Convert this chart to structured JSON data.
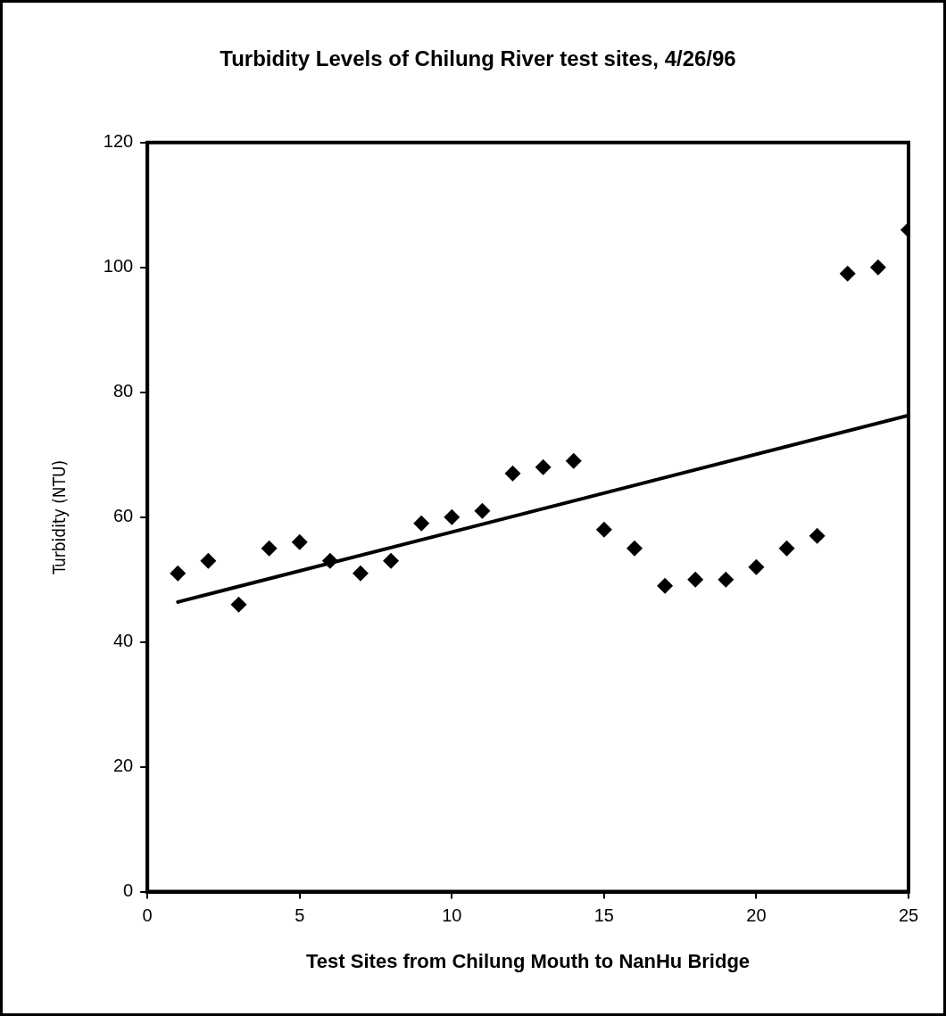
{
  "chart_data": {
    "type": "scatter",
    "title": "Turbidity Levels of Chilung River test sites, 4/26/96",
    "xlabel": "Test Sites from Chilung Mouth to NanHu Bridge",
    "ylabel": "Turbidity (NTU)",
    "xlim": [
      0,
      25
    ],
    "xticks": [
      0,
      5,
      10,
      15,
      20,
      25
    ],
    "ylim": [
      0,
      120
    ],
    "yticks": [
      0,
      20,
      40,
      60,
      80,
      100,
      120
    ],
    "grid": false,
    "legend": false,
    "series": [
      {
        "type": "scatter",
        "marker": "diamond",
        "color": "#000000",
        "x": [
          1,
          2,
          3,
          4,
          5,
          6,
          7,
          8,
          9,
          10,
          11,
          12,
          13,
          14,
          15,
          16,
          17,
          18,
          19,
          20,
          21,
          22,
          23,
          24,
          25
        ],
        "values": [
          51,
          53,
          46,
          55,
          56,
          53,
          51,
          53,
          59,
          60,
          61,
          67,
          68,
          69,
          58,
          55,
          49,
          50,
          50,
          52,
          55,
          57,
          99,
          100,
          106
        ]
      },
      {
        "type": "line",
        "marker": "none",
        "color": "#000000",
        "x": [
          1,
          25
        ],
        "values": [
          46.4,
          76.3
        ]
      }
    ]
  }
}
